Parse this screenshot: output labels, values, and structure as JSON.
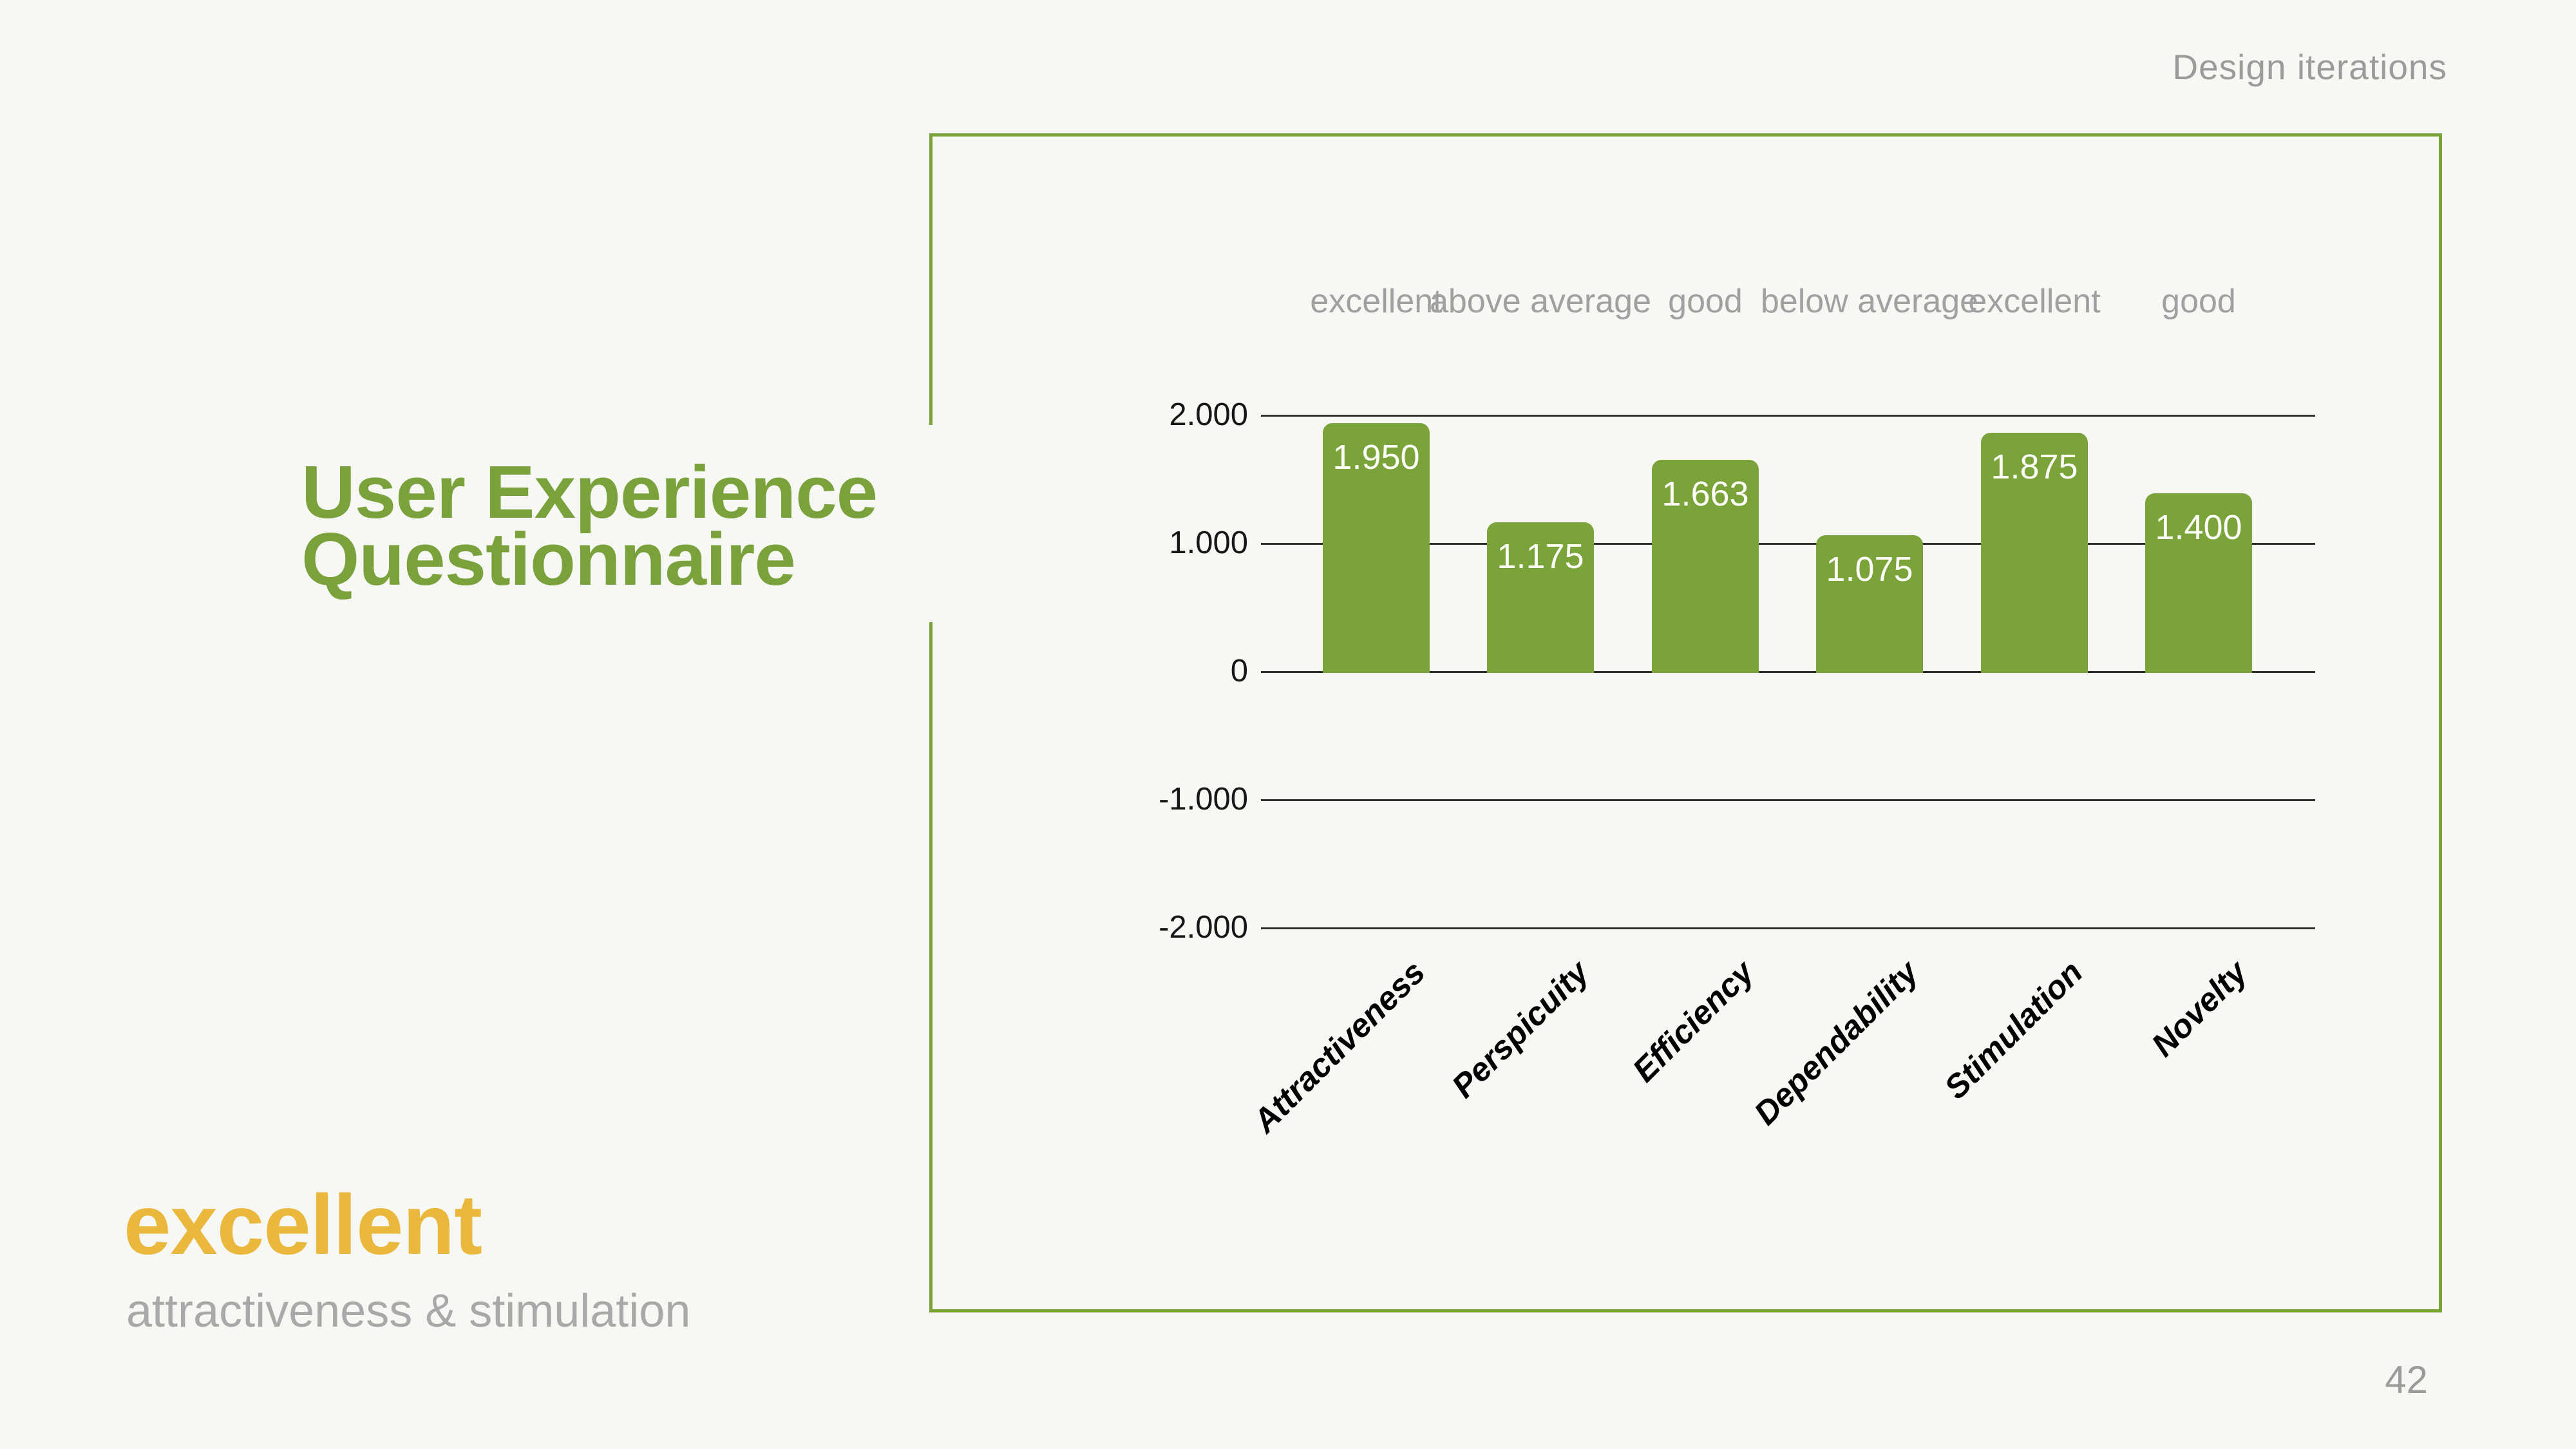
{
  "page": {
    "number": "42",
    "background": "#f7f7f4"
  },
  "header": {
    "annotation": "Design iterations"
  },
  "title": {
    "lines": [
      "User Experience",
      "Questionnaire"
    ],
    "color": "#7aa23c"
  },
  "summary": {
    "rating": "excellent",
    "caption": "attractiveness & stimulation",
    "rating_color": "#e9b83d",
    "caption_color": "#a9a9a9"
  },
  "chart_data": {
    "type": "bar",
    "title": "",
    "categories": [
      "Attractiveness",
      "Perspicuity",
      "Efficiency",
      "Dependability",
      "Stimulation",
      "Novelty"
    ],
    "values": [
      1.95,
      1.175,
      1.663,
      1.075,
      1.875,
      1.4
    ],
    "bar_value_labels": [
      "1.950",
      "1.175",
      "1.663",
      "1.075",
      "1.875",
      "1.400"
    ],
    "rating_labels": [
      "excellent",
      "above average",
      "good",
      "below average",
      "excellent",
      "good"
    ],
    "y_axis": {
      "ticks": [
        "2.000",
        "1.000",
        "0",
        "-1.000",
        "-2.000"
      ],
      "tick_values": [
        2,
        1,
        0,
        -1,
        -2
      ],
      "range": [
        -2,
        2
      ]
    },
    "xlabel": "",
    "ylabel": "",
    "bar_color": "#7aa33a",
    "grid": "horizontal",
    "legend": "none"
  }
}
